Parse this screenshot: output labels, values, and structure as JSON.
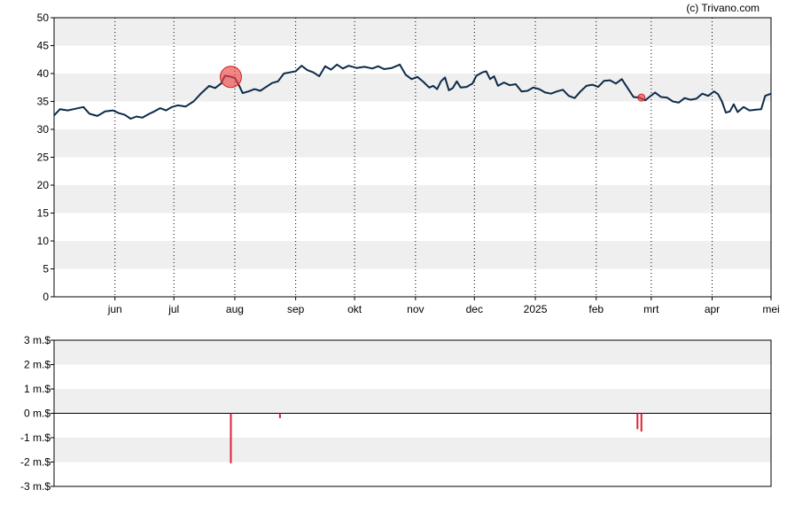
{
  "copyright": "(c) Trivano.com",
  "chart_data": [
    {
      "type": "line",
      "title": "",
      "xlabel": "",
      "ylabel": "",
      "ylim": [
        0,
        50
      ],
      "yticks": [
        0,
        5,
        10,
        15,
        20,
        25,
        30,
        35,
        40,
        45,
        50
      ],
      "ytick_labels": [
        "0",
        "5",
        "10",
        "15",
        "20",
        "25",
        "30",
        "35",
        "40",
        "45",
        "50"
      ],
      "x_range": [
        "2024-05-01",
        "2025-05-01"
      ],
      "xticks": [
        {
          "date": "2024-06-01",
          "label": "jun"
        },
        {
          "date": "2024-07-01",
          "label": "jul"
        },
        {
          "date": "2024-08-01",
          "label": "aug"
        },
        {
          "date": "2024-09-01",
          "label": "sep"
        },
        {
          "date": "2024-10-01",
          "label": "okt"
        },
        {
          "date": "2024-11-01",
          "label": "nov"
        },
        {
          "date": "2024-12-01",
          "label": "dec"
        },
        {
          "date": "2025-01-01",
          "label": "2025"
        },
        {
          "date": "2025-02-01",
          "label": "feb"
        },
        {
          "date": "2025-03-01",
          "label": "mrt"
        },
        {
          "date": "2025-04-01",
          "label": "apr"
        },
        {
          "date": "2025-05-01",
          "label": "mei"
        }
      ],
      "grid": "alternating horizontal bands, dotted vertical month lines",
      "line_color": "#0d2a4a",
      "series": [
        {
          "points": [
            [
              "2024-05-01",
              32.5
            ],
            [
              "2024-05-04",
              33.6
            ],
            [
              "2024-05-08",
              33.4
            ],
            [
              "2024-05-12",
              33.7
            ],
            [
              "2024-05-16",
              34.0
            ],
            [
              "2024-05-19",
              32.8
            ],
            [
              "2024-05-23",
              32.4
            ],
            [
              "2024-05-27",
              33.2
            ],
            [
              "2024-05-31",
              33.4
            ],
            [
              "2024-06-03",
              32.9
            ],
            [
              "2024-06-06",
              32.6
            ],
            [
              "2024-06-09",
              31.9
            ],
            [
              "2024-06-12",
              32.3
            ],
            [
              "2024-06-15",
              32.1
            ],
            [
              "2024-06-18",
              32.7
            ],
            [
              "2024-06-21",
              33.2
            ],
            [
              "2024-06-24",
              33.8
            ],
            [
              "2024-06-27",
              33.4
            ],
            [
              "2024-06-30",
              34.0
            ],
            [
              "2024-07-03",
              34.3
            ],
            [
              "2024-07-07",
              34.1
            ],
            [
              "2024-07-11",
              35.0
            ],
            [
              "2024-07-15",
              36.5
            ],
            [
              "2024-07-19",
              37.8
            ],
            [
              "2024-07-22",
              37.4
            ],
            [
              "2024-07-25",
              38.2
            ],
            [
              "2024-07-27",
              39.6
            ],
            [
              "2024-07-29",
              39.5
            ],
            [
              "2024-08-01",
              39.2
            ],
            [
              "2024-08-03",
              38.0
            ],
            [
              "2024-08-05",
              36.5
            ],
            [
              "2024-08-08",
              36.8
            ],
            [
              "2024-08-11",
              37.2
            ],
            [
              "2024-08-14",
              36.9
            ],
            [
              "2024-08-17",
              37.6
            ],
            [
              "2024-08-20",
              38.3
            ],
            [
              "2024-08-23",
              38.6
            ],
            [
              "2024-08-26",
              40.0
            ],
            [
              "2024-08-29",
              40.2
            ],
            [
              "2024-09-01",
              40.4
            ],
            [
              "2024-09-04",
              41.4
            ],
            [
              "2024-09-07",
              40.6
            ],
            [
              "2024-09-10",
              40.2
            ],
            [
              "2024-09-13",
              39.5
            ],
            [
              "2024-09-16",
              41.3
            ],
            [
              "2024-09-19",
              40.7
            ],
            [
              "2024-09-22",
              41.6
            ],
            [
              "2024-09-25",
              40.9
            ],
            [
              "2024-09-28",
              41.4
            ],
            [
              "2024-10-02",
              41.0
            ],
            [
              "2024-10-06",
              41.2
            ],
            [
              "2024-10-10",
              40.9
            ],
            [
              "2024-10-13",
              41.3
            ],
            [
              "2024-10-16",
              40.8
            ],
            [
              "2024-10-20",
              41.0
            ],
            [
              "2024-10-24",
              41.6
            ],
            [
              "2024-10-27",
              39.8
            ],
            [
              "2024-10-30",
              39.0
            ],
            [
              "2024-11-02",
              39.4
            ],
            [
              "2024-11-05",
              38.5
            ],
            [
              "2024-11-08",
              37.5
            ],
            [
              "2024-11-10",
              37.8
            ],
            [
              "2024-11-12",
              37.2
            ],
            [
              "2024-11-14",
              38.6
            ],
            [
              "2024-11-16",
              39.3
            ],
            [
              "2024-11-18",
              37.0
            ],
            [
              "2024-11-20",
              37.4
            ],
            [
              "2024-11-22",
              38.6
            ],
            [
              "2024-11-24",
              37.5
            ],
            [
              "2024-11-27",
              37.6
            ],
            [
              "2024-11-30",
              38.2
            ],
            [
              "2024-12-02",
              39.6
            ],
            [
              "2024-12-05",
              40.2
            ],
            [
              "2024-12-07",
              40.4
            ],
            [
              "2024-12-09",
              39.0
            ],
            [
              "2024-12-11",
              39.5
            ],
            [
              "2024-12-13",
              37.8
            ],
            [
              "2024-12-16",
              38.4
            ],
            [
              "2024-12-19",
              37.9
            ],
            [
              "2024-12-22",
              38.1
            ],
            [
              "2024-12-25",
              36.8
            ],
            [
              "2024-12-28",
              36.9
            ],
            [
              "2024-12-31",
              37.5
            ],
            [
              "2025-01-03",
              37.2
            ],
            [
              "2025-01-06",
              36.6
            ],
            [
              "2025-01-09",
              36.4
            ],
            [
              "2025-01-12",
              36.8
            ],
            [
              "2025-01-15",
              37.1
            ],
            [
              "2025-01-18",
              36.0
            ],
            [
              "2025-01-21",
              35.6
            ],
            [
              "2025-01-24",
              36.8
            ],
            [
              "2025-01-27",
              37.8
            ],
            [
              "2025-01-30",
              38.0
            ],
            [
              "2025-02-02",
              37.6
            ],
            [
              "2025-02-05",
              38.7
            ],
            [
              "2025-02-08",
              38.8
            ],
            [
              "2025-02-11",
              38.2
            ],
            [
              "2025-02-14",
              39.0
            ],
            [
              "2025-02-17",
              37.4
            ],
            [
              "2025-02-20",
              35.8
            ],
            [
              "2025-02-23",
              35.7
            ],
            [
              "2025-02-26",
              35.2
            ],
            [
              "2025-02-28",
              35.8
            ],
            [
              "2025-03-03",
              36.6
            ],
            [
              "2025-03-06",
              35.8
            ],
            [
              "2025-03-09",
              35.7
            ],
            [
              "2025-03-12",
              35.0
            ],
            [
              "2025-03-15",
              34.8
            ],
            [
              "2025-03-18",
              35.6
            ],
            [
              "2025-03-21",
              35.3
            ],
            [
              "2025-03-24",
              35.5
            ],
            [
              "2025-03-27",
              36.4
            ],
            [
              "2025-03-30",
              36.0
            ],
            [
              "2025-04-02",
              36.8
            ],
            [
              "2025-04-04",
              36.3
            ],
            [
              "2025-04-06",
              35.0
            ],
            [
              "2025-04-08",
              33.0
            ],
            [
              "2025-04-10",
              33.2
            ],
            [
              "2025-04-12",
              34.5
            ],
            [
              "2025-04-14",
              33.1
            ],
            [
              "2025-04-17",
              34.0
            ],
            [
              "2025-04-20",
              33.4
            ],
            [
              "2025-04-23",
              33.5
            ],
            [
              "2025-04-26",
              33.6
            ],
            [
              "2025-04-28",
              36.0
            ],
            [
              "2025-05-01",
              36.4
            ]
          ]
        }
      ],
      "markers": [
        {
          "date": "2024-07-30",
          "value": 39.4,
          "size": "large",
          "color": "#ee4444"
        },
        {
          "date": "2025-02-24",
          "value": 35.7,
          "size": "small",
          "color": "#ee4444"
        }
      ]
    },
    {
      "type": "bar",
      "title": "",
      "ylim": [
        -3,
        3
      ],
      "yticks": [
        -3,
        -2,
        -1,
        0,
        1,
        2,
        3
      ],
      "ytick_labels": [
        "-3 m.$",
        "-2 m.$",
        "-1 m.$",
        "0 m.$",
        "1 m.$",
        "2 m.$",
        "3 m.$"
      ],
      "x_range": [
        "2024-05-01",
        "2025-05-01"
      ],
      "bar_color": "#dd2233",
      "bars": [
        {
          "date": "2024-07-30",
          "value": -2.05
        },
        {
          "date": "2024-08-24",
          "value": -0.2
        },
        {
          "date": "2025-02-22",
          "value": -0.65
        },
        {
          "date": "2025-02-24",
          "value": -0.75
        }
      ]
    }
  ]
}
